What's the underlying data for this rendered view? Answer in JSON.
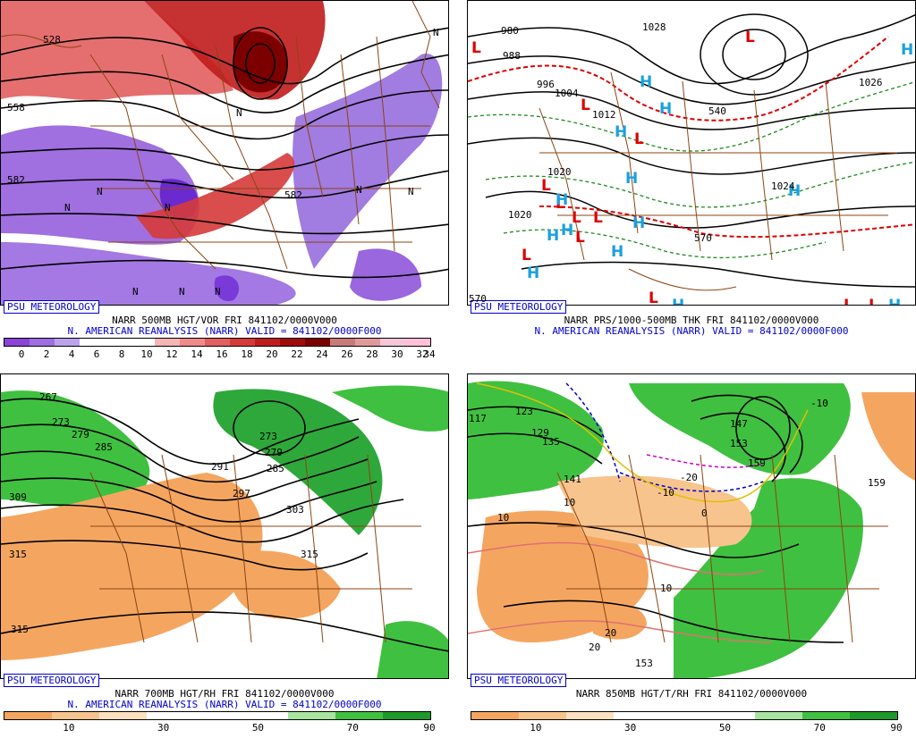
{
  "panels": [
    {
      "id": "500mb",
      "psu_label": "PSU METEOROLOGY",
      "line1": "NARR 500MB HGT/VOR FRI 841102/0000V000",
      "line2": "N. AMERICAN REANALYSIS (NARR) VALID = 841102/0000F000",
      "colorbar": {
        "colors": [
          "#8a44d6",
          "#9f6ee0",
          "#bca2ec",
          "#ffffff",
          "#ffffff",
          "#ffffff",
          "#f6b4b4",
          "#ee8a8a",
          "#e25f5f",
          "#d53a3a",
          "#c01c1c",
          "#a00c0c",
          "#7d0000",
          "#c87a7a",
          "#e09a9a",
          "#f4c6d8",
          "#ffc0d8"
        ],
        "ticks": [
          "0",
          "2",
          "4",
          "6",
          "8",
          "10",
          "12",
          "14",
          "16",
          "18",
          "20",
          "22",
          "24",
          "26",
          "28",
          "30",
          "32",
          "34"
        ]
      },
      "map_labels": [
        "528",
        "558",
        "582",
        "582",
        "N",
        "N",
        "N",
        "N",
        "N",
        "N",
        "N",
        "N",
        "N",
        "N"
      ]
    },
    {
      "id": "sfc",
      "psu_label": "PSU METEOROLOGY",
      "line1": "NARR PRS/1000-500MB THK FRI 841102/0000V000",
      "line2": "N. AMERICAN REANALYSIS (NARR) VALID = 841102/0000F000",
      "map_labels": [
        "980",
        "988",
        "996",
        "1004",
        "1012",
        "1020",
        "1028",
        "1020",
        "1026",
        "1024",
        "540",
        "570",
        "570"
      ],
      "highs": 14,
      "lows": 13
    },
    {
      "id": "700mb",
      "psu_label": "PSU METEOROLOGY",
      "line1": "NARR 700MB HGT/RH FRI 841102/0000V000",
      "line2": "N. AMERICAN REANALYSIS (NARR) VALID = 841102/0000F000",
      "colorbar": {
        "colors": [
          "#f4a660",
          "#f8c48e",
          "#fde0c0",
          "#ffffff",
          "#ffffff",
          "#ffffff",
          "#a8e4a0",
          "#40c040",
          "#1e9a2a"
        ],
        "ticks": [
          "10",
          "30",
          "50",
          "70",
          "90"
        ]
      },
      "map_labels": [
        "267",
        "273",
        "279",
        "285",
        "291",
        "297",
        "303",
        "309",
        "315",
        "315",
        "315",
        "273",
        "279",
        "285"
      ]
    },
    {
      "id": "850mb",
      "psu_label": "PSU METEOROLOGY",
      "line1": "NARR 850MB HGT/T/RH FRI 841102/0000V000",
      "line2": "",
      "colorbar": {
        "colors": [
          "#f4a660",
          "#f8c48e",
          "#fde0c0",
          "#ffffff",
          "#ffffff",
          "#ffffff",
          "#a8e4a0",
          "#40c040",
          "#1e9a2a"
        ],
        "ticks": [
          "10",
          "30",
          "50",
          "70",
          "90"
        ]
      },
      "map_labels": [
        "117",
        "123",
        "129",
        "135",
        "141",
        "147",
        "153",
        "159",
        "153",
        "159",
        "-10",
        "-20",
        "-10",
        "0",
        "10",
        "10",
        "10",
        "20",
        "20"
      ]
    }
  ],
  "colors": {
    "caption_blue": "#0000cc",
    "map_border": "#8b4513",
    "high": "#1aa0e0",
    "low": "#dd0000",
    "thickness_cold": "#dd0000",
    "thickness_warm": "#1e8a1e"
  }
}
